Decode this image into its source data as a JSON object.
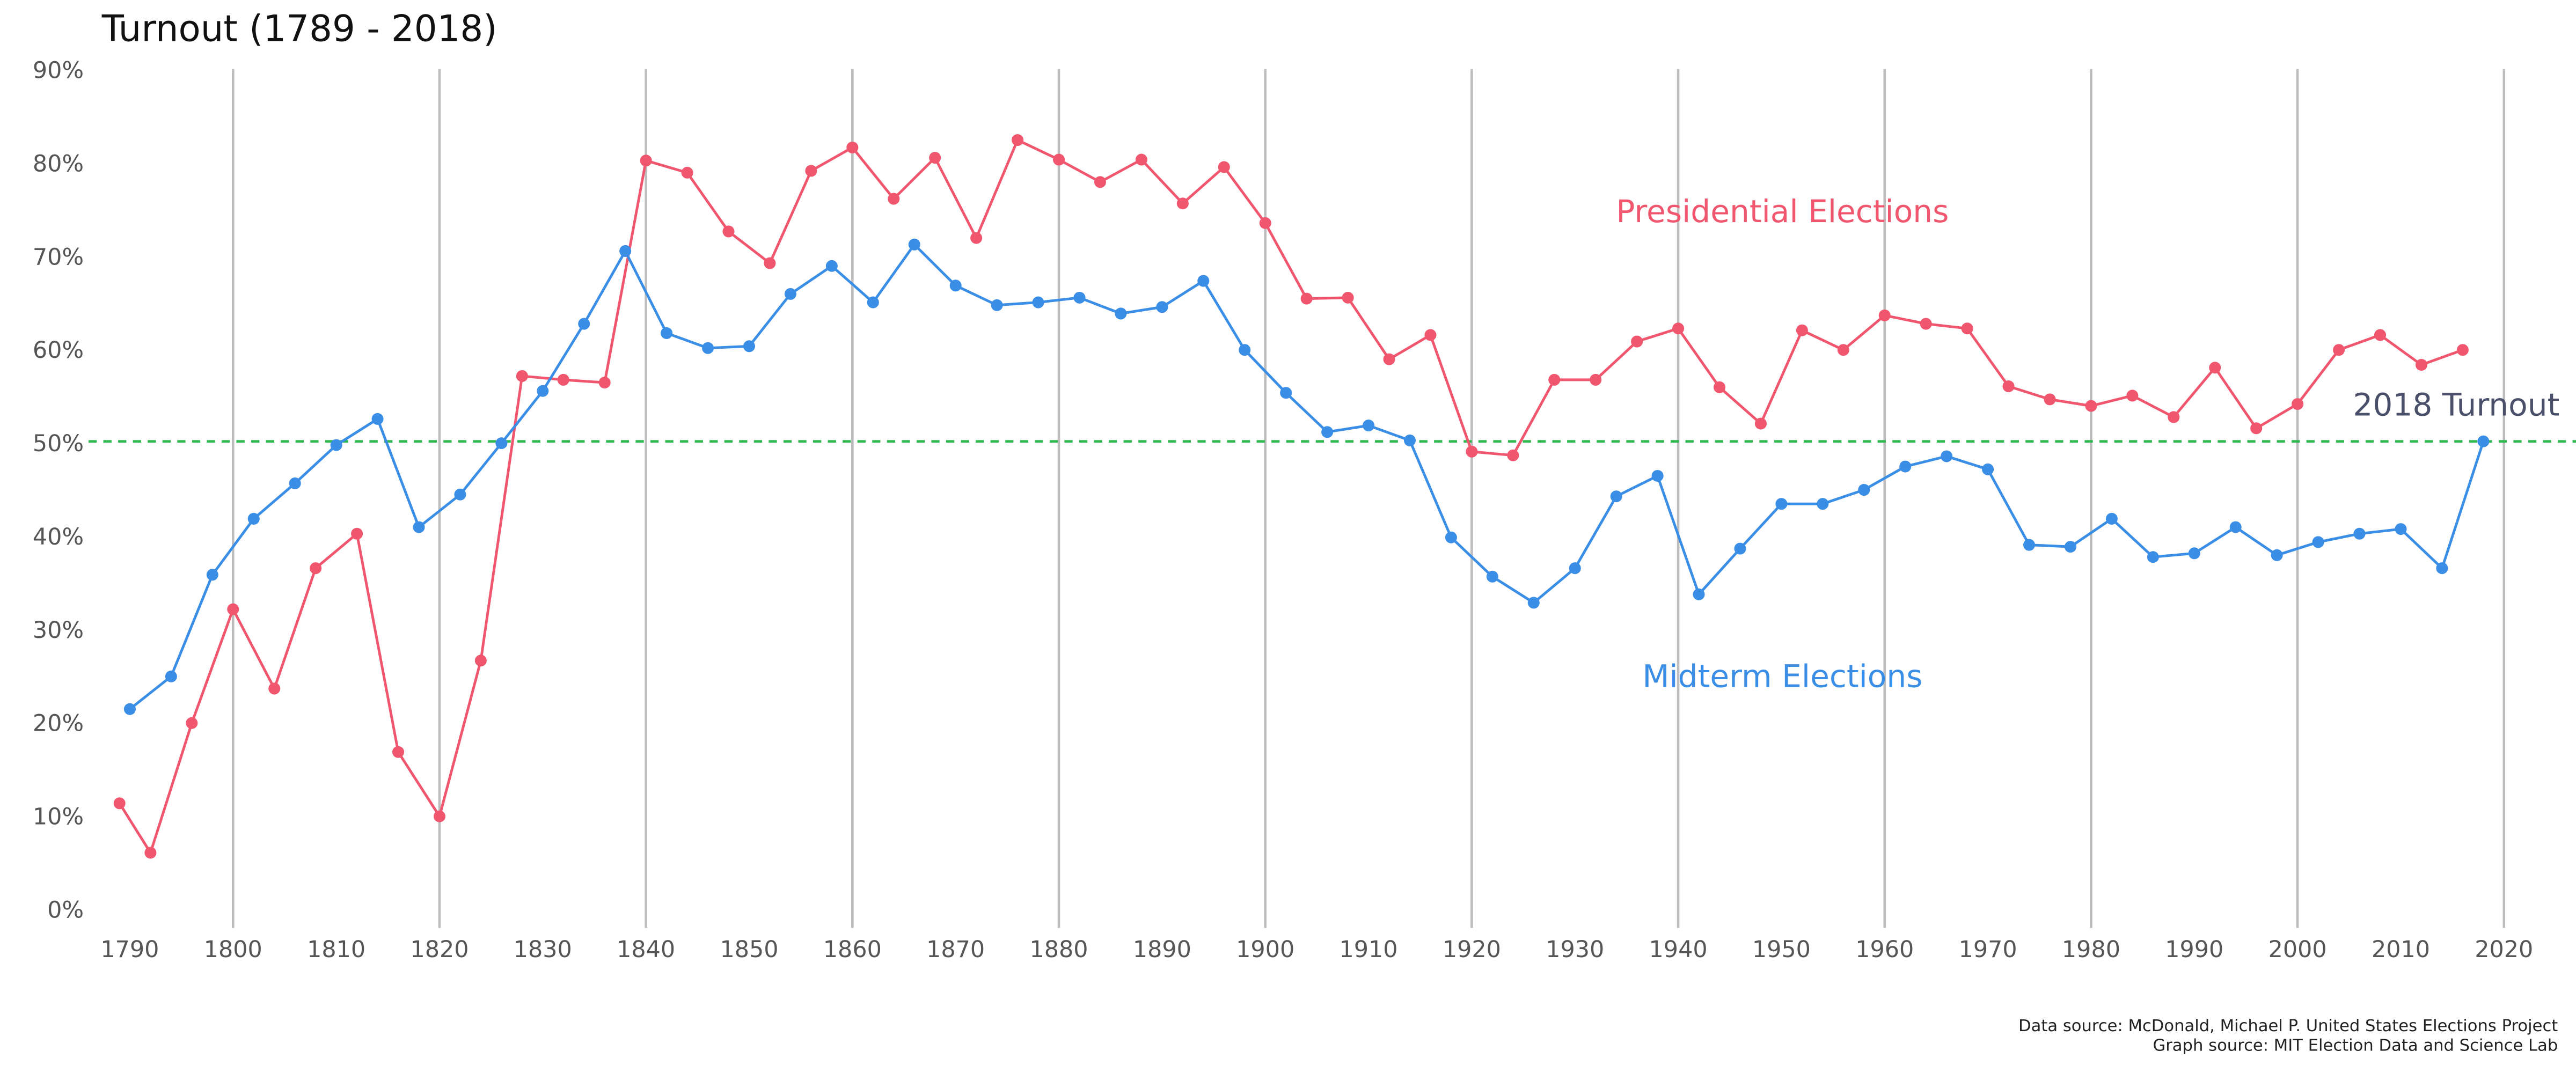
{
  "chart_data": {
    "type": "line",
    "title": "Turnout (1789 - 2018)",
    "series": [
      {
        "name": "Presidential Elections",
        "color": "#f0566e",
        "x": [
          1789,
          1792,
          1796,
          1800,
          1804,
          1808,
          1812,
          1816,
          1820,
          1824,
          1828,
          1832,
          1836,
          1840,
          1844,
          1848,
          1852,
          1856,
          1860,
          1864,
          1868,
          1872,
          1876,
          1880,
          1884,
          1888,
          1892,
          1896,
          1900,
          1904,
          1908,
          1912,
          1916,
          1920,
          1924,
          1928,
          1932,
          1936,
          1940,
          1944,
          1948,
          1952,
          1956,
          1960,
          1964,
          1968,
          1972,
          1976,
          1980,
          1984,
          1988,
          1992,
          1996,
          2000,
          2004,
          2008,
          2012,
          2016
        ],
        "values": [
          11.6,
          6.3,
          20.2,
          32.4,
          23.9,
          36.8,
          40.5,
          17.1,
          10.2,
          26.9,
          57.4,
          57.0,
          56.7,
          80.5,
          79.2,
          72.9,
          69.5,
          79.4,
          81.9,
          76.4,
          80.8,
          72.2,
          82.7,
          80.6,
          78.2,
          80.6,
          75.9,
          79.8,
          73.8,
          65.7,
          65.8,
          59.2,
          61.8,
          49.3,
          48.9,
          57.0,
          57.0,
          61.1,
          62.5,
          56.2,
          52.3,
          62.3,
          60.2,
          63.9,
          63.0,
          62.5,
          56.3,
          54.9,
          54.2,
          55.3,
          53.0,
          58.3,
          51.8,
          54.4,
          60.2,
          61.8,
          58.6,
          60.2
        ]
      },
      {
        "name": "Midterm Elections",
        "color": "#3a8ee6",
        "x": [
          1790,
          1794,
          1798,
          1802,
          1806,
          1810,
          1814,
          1818,
          1822,
          1826,
          1830,
          1834,
          1838,
          1842,
          1846,
          1850,
          1854,
          1858,
          1862,
          1866,
          1870,
          1874,
          1878,
          1882,
          1886,
          1890,
          1894,
          1898,
          1902,
          1906,
          1910,
          1914,
          1918,
          1922,
          1926,
          1930,
          1934,
          1938,
          1942,
          1946,
          1950,
          1954,
          1958,
          1962,
          1966,
          1970,
          1974,
          1978,
          1982,
          1986,
          1990,
          1994,
          1998,
          2002,
          2006,
          2010,
          2014,
          2018
        ],
        "values": [
          21.7,
          25.2,
          36.1,
          42.1,
          45.9,
          50.0,
          52.8,
          41.2,
          44.7,
          50.2,
          55.8,
          63.0,
          70.8,
          62.0,
          60.4,
          60.6,
          66.2,
          69.2,
          65.3,
          71.5,
          67.1,
          65.0,
          65.3,
          65.8,
          64.1,
          64.8,
          67.6,
          60.2,
          55.6,
          51.4,
          52.1,
          50.5,
          40.1,
          35.9,
          33.1,
          36.8,
          44.5,
          46.7,
          34.0,
          38.9,
          43.7,
          43.7,
          45.2,
          47.7,
          48.8,
          47.4,
          39.3,
          39.1,
          42.1,
          38.0,
          38.4,
          41.2,
          38.2,
          39.6,
          40.5,
          41.0,
          36.8,
          50.4
        ]
      }
    ],
    "reference_line": {
      "value": 50.4,
      "label": "2018 Turnout",
      "color": "#2db84d",
      "label_color": "#4a4f6a"
    },
    "xlim": [
      1786,
      2024
    ],
    "xticks": [
      1790,
      1800,
      1810,
      1820,
      1830,
      1840,
      1850,
      1860,
      1870,
      1880,
      1890,
      1900,
      1910,
      1920,
      1930,
      1940,
      1950,
      1960,
      1970,
      1980,
      1990,
      2000,
      2010,
      2020
    ],
    "ylim": [
      0,
      90
    ],
    "yticks": [
      {
        "value": 0,
        "label": "0%"
      },
      {
        "value": 10,
        "label": "10%"
      },
      {
        "value": 20,
        "label": "20%"
      },
      {
        "value": 30,
        "label": "30%"
      },
      {
        "value": 40,
        "label": "40%"
      },
      {
        "value": 50,
        "label": "50%"
      },
      {
        "value": 60,
        "label": "60%"
      },
      {
        "value": 70,
        "label": "70%"
      },
      {
        "value": 80,
        "label": "80%"
      },
      {
        "value": 90,
        "label": "90%"
      }
    ],
    "grid": true,
    "sources": [
      "Data source:  McDonald, Michael P. United States Elections Project",
      "Graph source:  MIT Election Data and Science Lab"
    ]
  }
}
